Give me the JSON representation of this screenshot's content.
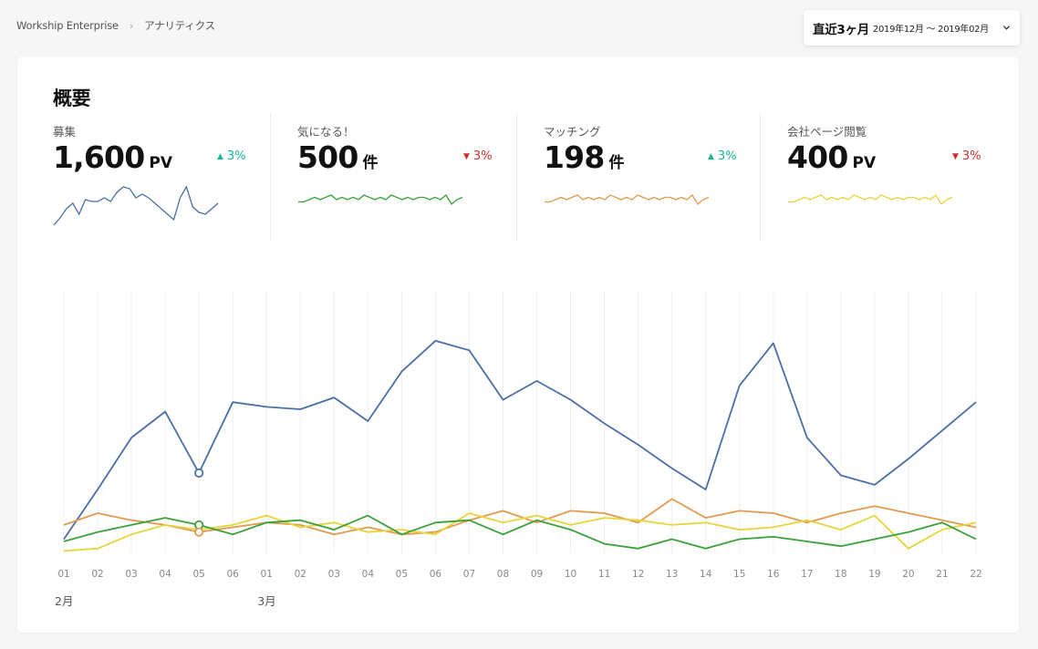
{
  "breadcrumb": {
    "root": "Workship Enterprise",
    "current": "アナリティクス"
  },
  "period": {
    "label": "直近3ヶ月",
    "range": "2019年12月 〜 2019年02月"
  },
  "overview": {
    "title": "概要"
  },
  "colors": {
    "up": "#19b596",
    "down": "#d22d2d"
  },
  "kpis": [
    {
      "label": "募集",
      "value": "1,600",
      "unit": "PV",
      "change": "3%",
      "direction": "up",
      "color": "#4a6fa5",
      "spark": [
        2,
        6,
        11,
        14,
        8,
        16,
        15,
        15,
        17,
        15,
        20,
        23,
        22,
        17,
        19,
        17,
        14,
        11,
        8,
        5,
        17,
        23,
        12,
        9,
        8,
        11,
        14
      ]
    },
    {
      "label": "気になる！",
      "value": "500",
      "unit": "件",
      "change": "3%",
      "direction": "down",
      "color": "#3aa13a",
      "spark": [
        4,
        4,
        5,
        6,
        5,
        6,
        7,
        5,
        6,
        5,
        6,
        5,
        7,
        6,
        5,
        6,
        5,
        7,
        6,
        5,
        6,
        5,
        6,
        6,
        5,
        6,
        5,
        7,
        3,
        5,
        6
      ]
    },
    {
      "label": "マッチング",
      "value": "198",
      "unit": "件",
      "change": "3%",
      "direction": "up",
      "color": "#e29a4f",
      "spark": [
        4,
        4,
        5,
        6,
        5,
        6,
        7,
        5,
        6,
        5,
        6,
        5,
        7,
        6,
        5,
        6,
        5,
        7,
        6,
        5,
        6,
        5,
        6,
        6,
        5,
        6,
        5,
        7,
        3,
        5,
        6
      ]
    },
    {
      "label": "会社ページ閲覧",
      "value": "400",
      "unit": "PV",
      "change": "3%",
      "direction": "down",
      "color": "#e6d53a",
      "spark": [
        4,
        4,
        5,
        6,
        5,
        6,
        7,
        5,
        6,
        5,
        6,
        5,
        7,
        6,
        5,
        6,
        5,
        7,
        6,
        5,
        6,
        5,
        6,
        6,
        5,
        6,
        5,
        7,
        3,
        5,
        6
      ]
    }
  ],
  "chart_data": {
    "type": "line",
    "x": [
      "01",
      "02",
      "03",
      "04",
      "05",
      "06",
      "01",
      "02",
      "03",
      "04",
      "05",
      "06",
      "07",
      "08",
      "09",
      "10",
      "11",
      "12",
      "13",
      "14",
      "15",
      "16",
      "17",
      "18",
      "19",
      "20",
      "21",
      "22"
    ],
    "month_labels": [
      {
        "text": "2月",
        "index": 0
      },
      {
        "text": "3月",
        "index": 6
      }
    ],
    "ylim": [
      0,
      100
    ],
    "grid": "vertical",
    "highlight_index": 4,
    "series": [
      {
        "color": "#4a6fa5",
        "values": [
          6,
          27,
          49,
          60,
          34,
          64,
          62,
          61,
          66,
          56,
          77,
          90,
          86,
          65,
          73,
          65,
          55,
          46,
          36,
          27,
          71,
          89,
          49,
          33,
          29,
          40,
          52,
          64
        ]
      },
      {
        "color": "#e29a4f",
        "values": [
          12,
          17,
          14,
          12,
          9,
          11,
          13,
          12,
          8,
          11,
          8,
          9,
          14,
          18,
          13,
          18,
          17,
          13,
          23,
          15,
          18,
          17,
          13,
          17,
          20,
          17,
          14,
          11
        ]
      },
      {
        "color": "#e6d53a",
        "values": [
          1,
          2,
          8,
          12,
          10,
          12,
          16,
          11,
          13,
          9,
          10,
          8,
          17,
          13,
          16,
          12,
          15,
          14,
          12,
          13,
          10,
          11,
          14,
          10,
          16,
          2,
          10,
          13
        ]
      },
      {
        "color": "#3aa13a",
        "values": [
          5,
          9,
          12,
          15,
          12,
          8,
          13,
          14,
          10,
          16,
          8,
          13,
          14,
          8,
          14,
          10,
          4,
          2,
          6,
          2,
          6,
          7,
          5,
          3,
          6,
          9,
          13,
          6
        ]
      }
    ]
  }
}
